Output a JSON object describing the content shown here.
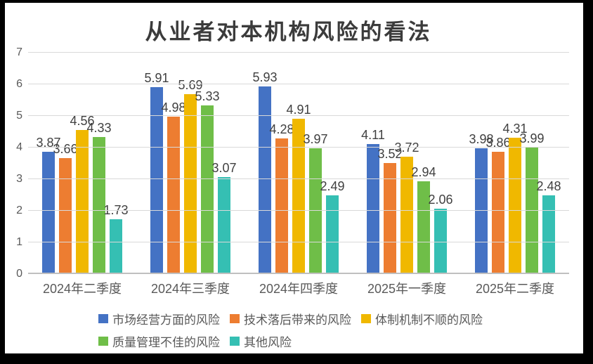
{
  "frame": {
    "border_color": "#000000",
    "background": "#ffffff"
  },
  "chart_data": {
    "type": "bar",
    "title": "从业者对本机构风险的看法",
    "categories": [
      "2024年二季度",
      "2024年三季度",
      "2024年四季度",
      "2025年一季度",
      "2025年二季度"
    ],
    "series": [
      {
        "name": "市场经营方面的风险",
        "color": "#4472c4",
        "values": [
          3.87,
          5.91,
          5.93,
          4.11,
          3.98
        ]
      },
      {
        "name": "技术落后带来的风险",
        "color": "#ed7d31",
        "values": [
          3.66,
          4.98,
          4.28,
          3.52,
          3.86
        ]
      },
      {
        "name": "体制机制不顺的风险",
        "color": "#f0b800",
        "values": [
          4.56,
          5.69,
          4.91,
          3.72,
          4.31
        ]
      },
      {
        "name": "质量管理不佳的风险",
        "color": "#6fbe48",
        "values": [
          4.33,
          5.33,
          3.97,
          2.94,
          3.99
        ]
      },
      {
        "name": "其他风险",
        "color": "#35bfb3",
        "values": [
          1.73,
          3.07,
          2.49,
          2.06,
          2.48
        ]
      }
    ],
    "ylim": [
      0,
      7
    ],
    "yticks": [
      0,
      1,
      2,
      3,
      4,
      5,
      6,
      7
    ],
    "grid": "horizontal",
    "legend_position": "bottom",
    "data_labels": true,
    "data_label_decimals": 2
  }
}
